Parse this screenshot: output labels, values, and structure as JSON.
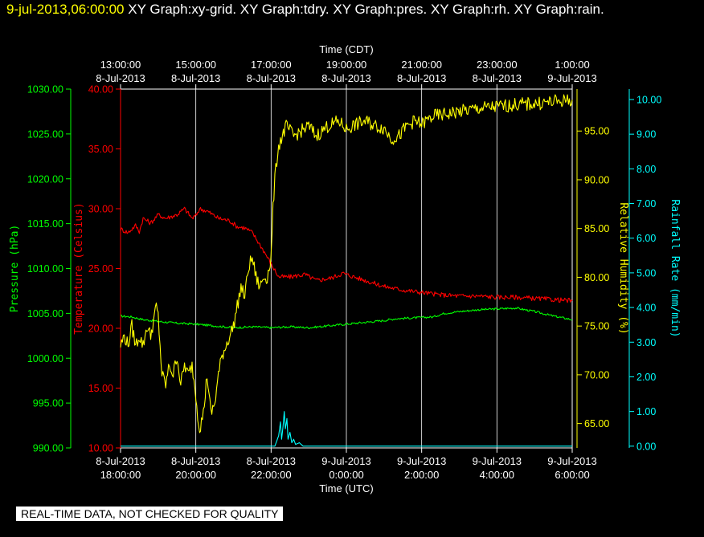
{
  "header": {
    "timestamp": "9-jul-2013,06:00:00",
    "titles": "XY Graph:xy-grid.  XY Graph:tdry.  XY Graph:pres.  XY Graph:rh.  XY Graph:rain."
  },
  "footer": {
    "notice": "REAL-TIME DATA, NOT CHECKED FOR QUALITY"
  },
  "colors": {
    "background": "#000000",
    "grid": "#ffffff",
    "temperature": "#ff0000",
    "pressure": "#00ff00",
    "humidity": "#ffff00",
    "rain": "#00ffff"
  },
  "chart_data": {
    "type": "line",
    "x_unit": "hours since 8-Jul-2013 18:00 UTC",
    "xlim": [
      0,
      12
    ],
    "grid": true,
    "top_axis": {
      "label": "Time (CDT)",
      "ticks": [
        {
          "time": "13:00:00",
          "date": "8-Jul-2013"
        },
        {
          "time": "15:00:00",
          "date": "8-Jul-2013"
        },
        {
          "time": "17:00:00",
          "date": "8-Jul-2013"
        },
        {
          "time": "19:00:00",
          "date": "8-Jul-2013"
        },
        {
          "time": "21:00:00",
          "date": "8-Jul-2013"
        },
        {
          "time": "23:00:00",
          "date": "8-Jul-2013"
        },
        {
          "time": "1:00:00",
          "date": "9-Jul-2013"
        }
      ]
    },
    "bottom_axis": {
      "label": "Time (UTC)",
      "ticks": [
        {
          "date": "8-Jul-2013",
          "time": "18:00:00"
        },
        {
          "date": "8-Jul-2013",
          "time": "20:00:00"
        },
        {
          "date": "8-Jul-2013",
          "time": "22:00:00"
        },
        {
          "date": "9-Jul-2013",
          "time": "0:00:00"
        },
        {
          "date": "9-Jul-2013",
          "time": "2:00:00"
        },
        {
          "date": "9-Jul-2013",
          "time": "4:00:00"
        },
        {
          "date": "9-Jul-2013",
          "time": "6:00:00"
        }
      ]
    },
    "axes": {
      "pressure": {
        "label": "Pressure (hPa)",
        "ylim": [
          990,
          1030
        ],
        "ticks": [
          "990.00",
          "995.00",
          "1000.00",
          "1005.00",
          "1010.00",
          "1015.00",
          "1020.00",
          "1025.00",
          "1030.00"
        ]
      },
      "temperature": {
        "label": "Temperature (Celsius)",
        "ylim": [
          10,
          40
        ],
        "ticks": [
          "10.00",
          "15.00",
          "20.00",
          "25.00",
          "30.00",
          "35.00",
          "40.00"
        ]
      },
      "humidity": {
        "label": "Relative Humidity (%)",
        "ylim": [
          62.5,
          99.3
        ],
        "ticks": [
          "65.00",
          "70.00",
          "75.00",
          "80.00",
          "85.00",
          "90.00",
          "95.00"
        ]
      },
      "rain": {
        "label": "Rainfall Rate (mm/min)",
        "ylim": [
          -0.05,
          10.3
        ],
        "ticks": [
          "0.00",
          "1.00",
          "2.00",
          "3.00",
          "4.00",
          "5.00",
          "6.00",
          "7.00",
          "8.00",
          "9.00",
          "10.00"
        ]
      }
    },
    "series": [
      {
        "name": "tdry",
        "axis": "temperature",
        "jitter": 0.2,
        "points": [
          [
            0,
            28.3
          ],
          [
            0.2,
            28.0
          ],
          [
            0.4,
            28.6
          ],
          [
            0.5,
            28.1
          ],
          [
            0.6,
            29.2
          ],
          [
            0.8,
            28.8
          ],
          [
            1.0,
            29.5
          ],
          [
            1.2,
            29.2
          ],
          [
            1.5,
            29.5
          ],
          [
            1.7,
            30.0
          ],
          [
            1.9,
            29.2
          ],
          [
            2.0,
            29.4
          ],
          [
            2.1,
            30.0
          ],
          [
            2.3,
            29.8
          ],
          [
            2.6,
            29.2
          ],
          [
            2.9,
            29.0
          ],
          [
            3.1,
            28.5
          ],
          [
            3.3,
            28.4
          ],
          [
            3.5,
            28.0
          ],
          [
            3.8,
            26.5
          ],
          [
            4.2,
            24.3
          ],
          [
            4.5,
            24.3
          ],
          [
            4.9,
            24.5
          ],
          [
            5.2,
            24.0
          ],
          [
            5.6,
            24.2
          ],
          [
            5.9,
            24.6
          ],
          [
            6.2,
            24.3
          ],
          [
            6.6,
            23.9
          ],
          [
            7.0,
            23.5
          ],
          [
            7.5,
            23.2
          ],
          [
            8.0,
            23.0
          ],
          [
            8.5,
            22.8
          ],
          [
            9.0,
            22.7
          ],
          [
            9.5,
            22.7
          ],
          [
            10.0,
            22.6
          ],
          [
            10.5,
            22.6
          ],
          [
            11.0,
            22.5
          ],
          [
            11.5,
            22.4
          ],
          [
            12.0,
            22.3
          ]
        ]
      },
      {
        "name": "pres",
        "axis": "pressure",
        "jitter": 0.12,
        "points": [
          [
            0,
            1004.7
          ],
          [
            0.3,
            1004.6
          ],
          [
            0.6,
            1004.3
          ],
          [
            1.0,
            1004.1
          ],
          [
            1.5,
            1003.9
          ],
          [
            2.0,
            1003.8
          ],
          [
            2.5,
            1003.6
          ],
          [
            3.0,
            1003.4
          ],
          [
            3.5,
            1003.5
          ],
          [
            4.0,
            1003.4
          ],
          [
            4.5,
            1003.5
          ],
          [
            5.0,
            1003.4
          ],
          [
            5.5,
            1003.6
          ],
          [
            6.0,
            1003.8
          ],
          [
            6.5,
            1004.0
          ],
          [
            7.0,
            1004.2
          ],
          [
            7.3,
            1004.4
          ],
          [
            7.8,
            1004.5
          ],
          [
            8.3,
            1004.6
          ],
          [
            8.6,
            1005.0
          ],
          [
            9.0,
            1005.2
          ],
          [
            9.5,
            1005.4
          ],
          [
            10.0,
            1005.5
          ],
          [
            10.5,
            1005.6
          ],
          [
            11.0,
            1005.2
          ],
          [
            11.5,
            1004.7
          ],
          [
            12.0,
            1004.3
          ]
        ]
      },
      {
        "name": "rh",
        "axis": "humidity",
        "jitter": 0.7,
        "points": [
          [
            0,
            73
          ],
          [
            0.1,
            74
          ],
          [
            0.2,
            73
          ],
          [
            0.3,
            75
          ],
          [
            0.4,
            73
          ],
          [
            0.5,
            74
          ],
          [
            0.6,
            73
          ],
          [
            0.7,
            75
          ],
          [
            0.8,
            74
          ],
          [
            0.9,
            76
          ],
          [
            0.95,
            77
          ],
          [
            1.0,
            76
          ],
          [
            1.05,
            73
          ],
          [
            1.1,
            70
          ],
          [
            1.2,
            69
          ],
          [
            1.3,
            71
          ],
          [
            1.4,
            70
          ],
          [
            1.5,
            72
          ],
          [
            1.6,
            69
          ],
          [
            1.7,
            71
          ],
          [
            1.8,
            70
          ],
          [
            1.9,
            71
          ],
          [
            2.0,
            68
          ],
          [
            2.05,
            66
          ],
          [
            2.1,
            64.5
          ],
          [
            2.2,
            66
          ],
          [
            2.3,
            70
          ],
          [
            2.4,
            66
          ],
          [
            2.5,
            67
          ],
          [
            2.6,
            70
          ],
          [
            2.7,
            72
          ],
          [
            2.8,
            73
          ],
          [
            2.9,
            74
          ],
          [
            3.0,
            75
          ],
          [
            3.1,
            77
          ],
          [
            3.2,
            79
          ],
          [
            3.3,
            78
          ],
          [
            3.4,
            81
          ],
          [
            3.5,
            82
          ],
          [
            3.6,
            80
          ],
          [
            3.7,
            79
          ],
          [
            3.8,
            80
          ],
          [
            3.9,
            80
          ],
          [
            4.0,
            82
          ],
          [
            4.05,
            87
          ],
          [
            4.1,
            90
          ],
          [
            4.15,
            92
          ],
          [
            4.2,
            93.5
          ],
          [
            4.3,
            94.5
          ],
          [
            4.4,
            95.5
          ],
          [
            4.5,
            95
          ],
          [
            4.6,
            94.5
          ],
          [
            4.8,
            95
          ],
          [
            5.0,
            95.5
          ],
          [
            5.2,
            94.5
          ],
          [
            5.5,
            95.5
          ],
          [
            5.8,
            96
          ],
          [
            6.0,
            95.2
          ],
          [
            6.2,
            95.6
          ],
          [
            6.5,
            96
          ],
          [
            6.8,
            95.5
          ],
          [
            7.0,
            95.3
          ],
          [
            7.2,
            94.2
          ],
          [
            7.4,
            94.5
          ],
          [
            7.6,
            95.5
          ],
          [
            7.8,
            96
          ],
          [
            8.0,
            95.7
          ],
          [
            8.3,
            96.5
          ],
          [
            8.6,
            96.7
          ],
          [
            9.0,
            97
          ],
          [
            9.5,
            97.3
          ],
          [
            10.0,
            97.5
          ],
          [
            10.5,
            97.7
          ],
          [
            11.0,
            97.8
          ],
          [
            11.5,
            98
          ],
          [
            12.0,
            98.2
          ]
        ]
      },
      {
        "name": "rain",
        "axis": "rain",
        "jitter": 0,
        "points": [
          [
            0,
            0
          ],
          [
            4.1,
            0
          ],
          [
            4.2,
            0.3
          ],
          [
            4.25,
            0.7
          ],
          [
            4.28,
            0.2
          ],
          [
            4.32,
            0.6
          ],
          [
            4.35,
            1.0
          ],
          [
            4.38,
            0.5
          ],
          [
            4.42,
            0.8
          ],
          [
            4.45,
            0.2
          ],
          [
            4.5,
            0.4
          ],
          [
            4.55,
            0.1
          ],
          [
            4.6,
            0.2
          ],
          [
            4.65,
            0.05
          ],
          [
            4.75,
            0.1
          ],
          [
            4.85,
            0
          ],
          [
            12,
            0
          ]
        ]
      }
    ]
  }
}
